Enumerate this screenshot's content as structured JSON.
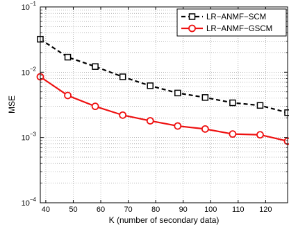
{
  "chart_data": {
    "type": "line",
    "xlabel": "K (number of secondary data)",
    "ylabel": "MSE",
    "yscale": "log",
    "xlim": [
      38,
      128
    ],
    "ylim": [
      0.0001,
      0.1
    ],
    "grid": true,
    "legend_position": "top-right",
    "x_ticks": [
      "40",
      "50",
      "60",
      "70",
      "80",
      "90",
      "100",
      "110",
      "120"
    ],
    "y_ticks": [
      {
        "value": 0.1,
        "base": "10",
        "exp": "−1"
      },
      {
        "value": 0.01,
        "base": "10",
        "exp": "−2"
      },
      {
        "value": 0.001,
        "base": "10",
        "exp": "−3"
      },
      {
        "value": 0.0001,
        "base": "10",
        "exp": "−4"
      }
    ],
    "series": [
      {
        "name": "LR−ANMF−SCM",
        "color": "#000000",
        "line_style": "dashed",
        "marker": "square",
        "x": [
          38,
          48,
          58,
          68,
          78,
          88,
          98,
          108,
          118,
          128
        ],
        "y": [
          0.032,
          0.017,
          0.0122,
          0.0085,
          0.0062,
          0.0048,
          0.0041,
          0.0034,
          0.0031,
          0.0024
        ]
      },
      {
        "name": "LR−ANMF−GSCM",
        "color": "#ee1111",
        "line_style": "solid",
        "marker": "circle",
        "x": [
          38,
          48,
          58,
          68,
          78,
          88,
          98,
          108,
          118,
          128
        ],
        "y": [
          0.0085,
          0.0044,
          0.003,
          0.0022,
          0.0018,
          0.0015,
          0.00135,
          0.00113,
          0.0011,
          0.00088
        ]
      }
    ]
  }
}
